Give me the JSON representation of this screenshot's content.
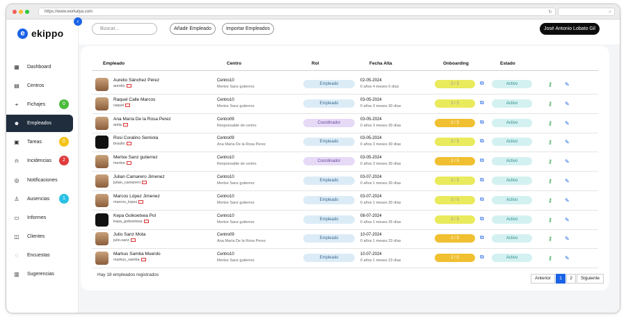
{
  "browser": {
    "url": "https://www.workalya.com"
  },
  "app": {
    "name": "ekippo",
    "logo_letter": "e"
  },
  "sidebar": {
    "items": [
      {
        "label": "Dashboard",
        "icon": "grid-icon"
      },
      {
        "label": "Centros",
        "icon": "building-icon"
      },
      {
        "label": "Fichajes",
        "icon": "location-pin-icon",
        "badge": "0",
        "badge_color": "#4cbb3d"
      },
      {
        "label": "Empleados",
        "icon": "users-icon",
        "active": true
      },
      {
        "label": "Tareas",
        "icon": "calendar-icon",
        "badge": "0",
        "badge_color": "#f3c318"
      },
      {
        "label": "Incidencias",
        "icon": "bell-icon",
        "badge": "2",
        "badge_color": "#e03b3b"
      },
      {
        "label": "Notificaciones",
        "icon": "notification-icon"
      },
      {
        "label": "Ausencias",
        "icon": "person-leave-icon",
        "badge": "1",
        "badge_color": "#29c1e5"
      },
      {
        "label": "Informes",
        "icon": "report-icon"
      },
      {
        "label": "Clientes",
        "icon": "clients-icon"
      },
      {
        "label": "Encuestas",
        "icon": "chat-icon"
      },
      {
        "label": "Sugerencias",
        "icon": "inbox-icon"
      }
    ]
  },
  "toolbar": {
    "search_placeholder": "Buscar...",
    "add_label": "Añadir Empleado",
    "import_label": "Importar Empleados",
    "user_name": "José Antonio Lobato Gil"
  },
  "table": {
    "headers": [
      "Empleado",
      "Centro",
      "Rol",
      "Fecha Alta",
      "Onboarding",
      "Estado"
    ],
    "rows": [
      {
        "name": "Aurelio Sánchez Pérez",
        "username": "aurelio",
        "centro": "Centro10",
        "responsable": "Mertxe Sanz gutierrez",
        "rol": "Empleado",
        "fecha": "02-05-2024",
        "antiguedad": "0 años 4 meses 0 días",
        "onboarding": "3 / 5",
        "estado": "Activo"
      },
      {
        "name": "Raquel Calle Marcos",
        "username": "raquel",
        "centro": "Centro10",
        "responsable": "Mertxe Sanz gutierrez",
        "rol": "Empleado",
        "fecha": "03-05-2024",
        "antiguedad": "0 años 3 meses 30 días",
        "onboarding": "3 / 5",
        "estado": "Activo"
      },
      {
        "name": "Ana María De la Rosa Perez",
        "username": "anita",
        "centro": "Centro09",
        "responsable": "Responsable de centro",
        "rol": "Coordinador",
        "fecha": "03-05-2024",
        "antiguedad": "0 años 3 meses 30 días",
        "onboarding": "2 / 5",
        "estado": "Activo"
      },
      {
        "name": "Rosi Coralino Semiola",
        "username": "braulio",
        "centro": "Centro09",
        "responsable": "Ana María De la Rosa Perez",
        "rol": "Empleado",
        "fecha": "03-05-2024",
        "antiguedad": "0 años 3 meses 30 días",
        "onboarding": "3 / 5",
        "estado": "Activo"
      },
      {
        "name": "Mertxe Sanz gutierrez",
        "username": "mertxe",
        "centro": "Centro10",
        "responsable": "Responsable de centro",
        "rol": "Coordinador",
        "fecha": "03-05-2024",
        "antiguedad": "0 años 3 meses 30 días",
        "onboarding": "2 / 5",
        "estado": "Activo"
      },
      {
        "name": "Julian Camarero Jimenez",
        "username": "julian_camarero",
        "centro": "Centro10",
        "responsable": "Mertxe Sanz gutierrez",
        "rol": "Empleado",
        "fecha": "03-07-2024",
        "antiguedad": "0 años 1 meses 30 días",
        "onboarding": "3 / 5",
        "estado": "Activo"
      },
      {
        "name": "Marcos López Jimenez",
        "username": "marcos_lopez",
        "centro": "Centro10",
        "responsable": "Mertxe Sanz gutierrez",
        "rol": "Empleado",
        "fecha": "03-07-2024",
        "antiguedad": "0 años 1 meses 30 días",
        "onboarding": "3 / 5",
        "estado": "Activo"
      },
      {
        "name": "Kepa Goikoetxea Pol",
        "username": "kepa_goikoetxea",
        "centro": "Centro10",
        "responsable": "Mertxe Sanz gutierrez",
        "rol": "Empleado",
        "fecha": "08-07-2024",
        "antiguedad": "0 años 1 meses 25 días",
        "onboarding": "3 / 5",
        "estado": "Activo"
      },
      {
        "name": "Julio Sanz Mota",
        "username": "julio.sanz",
        "centro": "Centro09",
        "responsable": "Ana María De la Rosa Perez",
        "rol": "Empleado",
        "fecha": "10-07-2024",
        "antiguedad": "0 años 1 meses 23 días",
        "onboarding": "2 / 5",
        "estado": "Activo"
      },
      {
        "name": "Markus Samba Muerdo",
        "username": "markus_samba",
        "centro": "Centro10",
        "responsable": "Mertxe Sanz gutierrez",
        "rol": "Empleado",
        "fecha": "10-07-2024",
        "antiguedad": "0 años 1 meses 23 días",
        "onboarding": "2 / 5",
        "estado": "Activo"
      }
    ]
  },
  "footer": {
    "count_text": "Hay 18 empleados registrados",
    "prev": "Anterior",
    "pages": [
      "1",
      "2"
    ],
    "next": "Siguiente"
  }
}
